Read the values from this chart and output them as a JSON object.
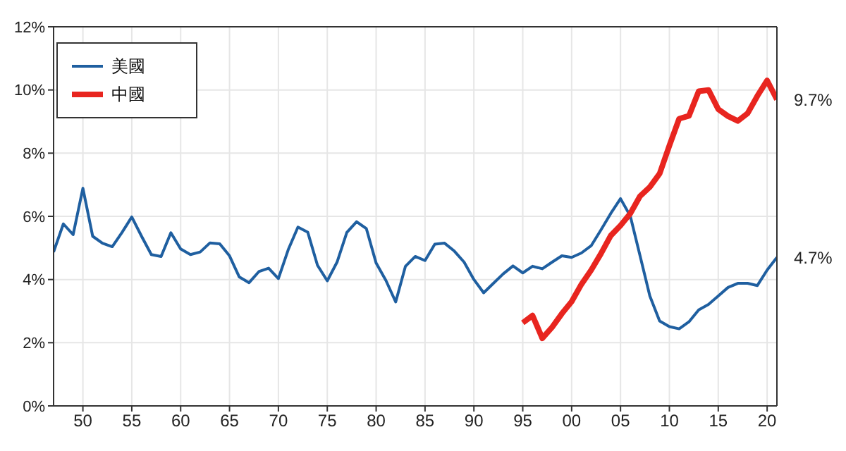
{
  "chart_data": {
    "type": "line",
    "x": [
      1947,
      1948,
      1949,
      1950,
      1951,
      1952,
      1953,
      1954,
      1955,
      1956,
      1957,
      1958,
      1959,
      1960,
      1961,
      1962,
      1963,
      1964,
      1965,
      1966,
      1967,
      1968,
      1969,
      1970,
      1971,
      1972,
      1973,
      1974,
      1975,
      1976,
      1977,
      1978,
      1979,
      1980,
      1981,
      1982,
      1983,
      1984,
      1985,
      1986,
      1987,
      1988,
      1989,
      1990,
      1991,
      1992,
      1993,
      1994,
      1995,
      1996,
      1997,
      1998,
      1999,
      2000,
      2001,
      2002,
      2003,
      2004,
      2005,
      2006,
      2007,
      2008,
      2009,
      2010,
      2011,
      2012,
      2013,
      2014,
      2015,
      2016,
      2017,
      2018,
      2019,
      2020,
      2021
    ],
    "series": [
      {
        "name": "美國",
        "color": "#1f5fa0",
        "values": [
          4.87,
          5.76,
          5.42,
          6.89,
          5.37,
          5.15,
          5.04,
          5.49,
          5.98,
          5.37,
          4.79,
          4.73,
          5.48,
          4.97,
          4.79,
          4.87,
          5.16,
          5.13,
          4.75,
          4.08,
          3.9,
          4.25,
          4.36,
          4.03,
          4.94,
          5.66,
          5.5,
          4.45,
          3.96,
          4.55,
          5.49,
          5.83,
          5.61,
          4.52,
          3.97,
          3.29,
          4.42,
          4.73,
          4.6,
          5.12,
          5.15,
          4.9,
          4.55,
          4.0,
          3.58,
          3.88,
          4.18,
          4.43,
          4.21,
          4.42,
          4.34,
          4.55,
          4.75,
          4.7,
          4.84,
          5.07,
          5.57,
          6.09,
          6.56,
          6.01,
          4.75,
          3.48,
          2.69,
          2.51,
          2.44,
          2.66,
          3.04,
          3.21,
          3.48,
          3.75,
          3.88,
          3.88,
          3.81,
          4.3,
          4.7
        ]
      },
      {
        "name": "中國",
        "color": "#e8251f",
        "values": [
          null,
          null,
          null,
          null,
          null,
          null,
          null,
          null,
          null,
          null,
          null,
          null,
          null,
          null,
          null,
          null,
          null,
          null,
          null,
          null,
          null,
          null,
          null,
          null,
          null,
          null,
          null,
          null,
          null,
          null,
          null,
          null,
          null,
          null,
          null,
          null,
          null,
          null,
          null,
          null,
          null,
          null,
          null,
          null,
          null,
          null,
          null,
          null,
          2.63,
          2.86,
          2.14,
          2.49,
          2.92,
          3.3,
          3.85,
          4.3,
          4.82,
          5.39,
          5.71,
          6.09,
          6.64,
          6.93,
          7.35,
          8.24,
          9.09,
          9.18,
          9.96,
          10.0,
          9.39,
          9.17,
          9.02,
          9.26,
          9.81,
          10.3,
          9.7
        ]
      }
    ],
    "xlim": [
      1947,
      2021
    ],
    "xticks": [
      {
        "value": 1950,
        "label": "50"
      },
      {
        "value": 1955,
        "label": "55"
      },
      {
        "value": 1960,
        "label": "60"
      },
      {
        "value": 1965,
        "label": "65"
      },
      {
        "value": 1970,
        "label": "70"
      },
      {
        "value": 1975,
        "label": "75"
      },
      {
        "value": 1980,
        "label": "80"
      },
      {
        "value": 1985,
        "label": "85"
      },
      {
        "value": 1990,
        "label": "90"
      },
      {
        "value": 1995,
        "label": "95"
      },
      {
        "value": 2000,
        "label": "00"
      },
      {
        "value": 2005,
        "label": "05"
      },
      {
        "value": 2010,
        "label": "10"
      },
      {
        "value": 2015,
        "label": "15"
      },
      {
        "value": 2020,
        "label": "20"
      }
    ],
    "ylim": [
      0,
      12
    ],
    "yticks": [
      {
        "value": 0,
        "label": "0%"
      },
      {
        "value": 2,
        "label": "2%"
      },
      {
        "value": 4,
        "label": "4%"
      },
      {
        "value": 6,
        "label": "6%"
      },
      {
        "value": 8,
        "label": "8%"
      },
      {
        "value": 10,
        "label": "10%"
      },
      {
        "value": 12,
        "label": "12%"
      }
    ],
    "annotations": [
      {
        "text": "9.7%",
        "x": 2021,
        "y": 9.7
      },
      {
        "text": "4.7%",
        "x": 2021,
        "y": 4.7
      }
    ],
    "grid": true,
    "legend": "top left",
    "marker": "none",
    "line_style": "solid"
  }
}
